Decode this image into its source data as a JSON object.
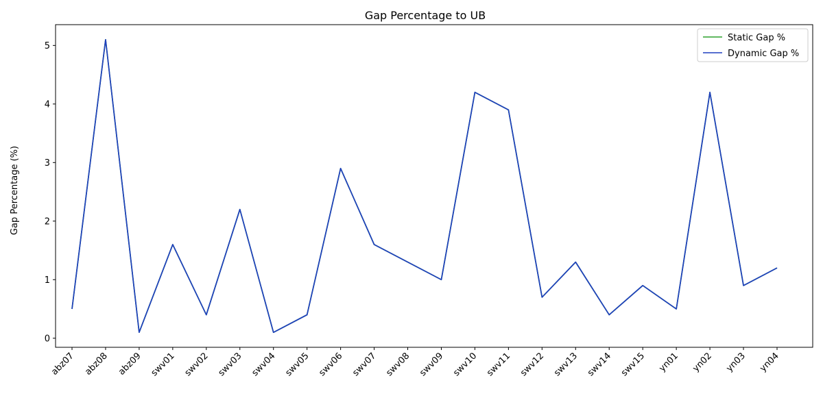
{
  "chart_data": {
    "type": "line",
    "title": "Gap Percentage to UB",
    "xlabel": "",
    "ylabel": "Gap Percentage (%)",
    "categories": [
      "abz07",
      "abz08",
      "abz09",
      "swv01",
      "swv02",
      "swv03",
      "swv04",
      "swv05",
      "swv06",
      "swv07",
      "swv08",
      "swv09",
      "swv10",
      "swv11",
      "swv12",
      "swv13",
      "swv14",
      "swv15",
      "yn01",
      "yn02",
      "yn03",
      "yn04"
    ],
    "series": [
      {
        "name": "Static Gap %",
        "color": "#2ca02c",
        "values": [
          0.5,
          5.1,
          0.1,
          1.6,
          0.4,
          2.2,
          0.1,
          0.4,
          2.9,
          1.6,
          1.3,
          1.0,
          4.2,
          3.9,
          0.7,
          1.3,
          0.4,
          0.9,
          0.5,
          4.2,
          0.9,
          1.2
        ]
      },
      {
        "name": "Dynamic Gap %",
        "color": "#1f3fbf",
        "values": [
          0.5,
          5.1,
          0.1,
          1.6,
          0.4,
          2.2,
          0.1,
          0.4,
          2.9,
          1.6,
          1.3,
          1.0,
          4.2,
          3.9,
          0.7,
          1.3,
          0.4,
          0.9,
          0.5,
          4.2,
          0.9,
          1.2
        ]
      }
    ],
    "yticks": [
      0,
      1,
      2,
      3,
      4,
      5
    ],
    "ylim": [
      -0.155,
      5.355
    ],
    "grid": false,
    "legend_position": "top-right"
  }
}
